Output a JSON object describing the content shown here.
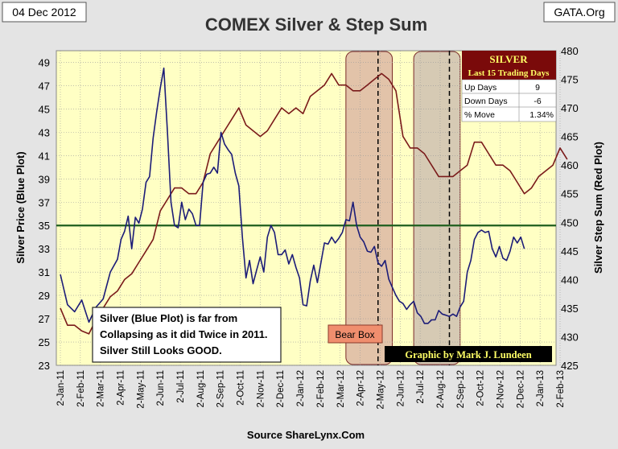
{
  "header": {
    "date": "04 Dec 2012",
    "title": "COMEX Silver & Step Sum",
    "site": "GATA.Org",
    "source": "Source ShareLynx.Com"
  },
  "chart_data": {
    "type": "line",
    "title": "COMEX Silver & Step Sum",
    "ylabel": "Silver Price (Blue Plot)",
    "y2label": "Silver Step Sum (Red Plot)",
    "ylim": [
      23,
      50
    ],
    "y2lim": [
      425,
      480
    ],
    "yticks": [
      23,
      25,
      27,
      29,
      31,
      33,
      35,
      37,
      39,
      41,
      43,
      45,
      47,
      49
    ],
    "y2ticks": [
      425,
      430,
      435,
      440,
      445,
      450,
      455,
      460,
      465,
      470,
      475,
      480
    ],
    "xticks": [
      "2-Jan-11",
      "2-Feb-11",
      "2-Mar-11",
      "2-Apr-11",
      "2-May-11",
      "2-Jun-11",
      "2-Jul-11",
      "2-Aug-11",
      "2-Sep-11",
      "2-Oct-11",
      "2-Nov-11",
      "2-Dec-11",
      "2-Jan-12",
      "2-Feb-12",
      "2-Mar-12",
      "2-Apr-12",
      "2-May-12",
      "2-Jun-12",
      "2-Jul-12",
      "2-Aug-12",
      "2-Sep-12",
      "2-Oct-12",
      "2-Nov-12",
      "2-Dec-12",
      "2-Jan-13",
      "2-Feb-13"
    ],
    "grid": true,
    "reference_line": 35,
    "series": [
      {
        "name": "Silver Price (Blue Plot)",
        "axis": "left",
        "color": "#1c1c78",
        "points": [
          [
            0,
            30.8
          ],
          [
            2,
            28.2
          ],
          [
            4,
            27.6
          ],
          [
            6,
            28.6
          ],
          [
            8,
            26.7
          ],
          [
            10,
            28.0
          ],
          [
            12,
            28.7
          ],
          [
            14,
            31.0
          ],
          [
            16,
            32.1
          ],
          [
            17,
            33.8
          ],
          [
            18,
            34.5
          ],
          [
            19,
            35.8
          ],
          [
            20,
            33.0
          ],
          [
            21,
            35.7
          ],
          [
            22,
            35.2
          ],
          [
            23,
            36.4
          ],
          [
            24,
            38.7
          ],
          [
            25,
            39.2
          ],
          [
            26,
            42.5
          ],
          [
            27,
            44.8
          ],
          [
            28,
            46.8
          ],
          [
            29,
            48.5
          ],
          [
            30,
            43.0
          ],
          [
            31,
            37.0
          ],
          [
            32,
            35.0
          ],
          [
            33,
            34.8
          ],
          [
            34,
            37.0
          ],
          [
            35,
            35.5
          ],
          [
            36,
            36.4
          ],
          [
            37,
            36.0
          ],
          [
            38,
            35.0
          ],
          [
            39,
            35.0
          ],
          [
            40,
            38.7
          ],
          [
            41,
            39.4
          ],
          [
            42,
            39.5
          ],
          [
            43,
            40.0
          ],
          [
            44,
            39.5
          ],
          [
            45,
            43.0
          ],
          [
            46,
            42.0
          ],
          [
            47,
            41.5
          ],
          [
            48,
            41.1
          ],
          [
            49,
            39.5
          ],
          [
            50,
            38.4
          ],
          [
            51,
            34.0
          ],
          [
            52,
            30.5
          ],
          [
            53,
            32.0
          ],
          [
            54,
            30.0
          ],
          [
            55,
            31.2
          ],
          [
            56,
            32.3
          ],
          [
            57,
            31.0
          ],
          [
            58,
            34.0
          ],
          [
            59,
            35.0
          ],
          [
            60,
            34.4
          ],
          [
            61,
            32.5
          ],
          [
            62,
            32.5
          ],
          [
            63,
            32.9
          ],
          [
            64,
            31.7
          ],
          [
            65,
            32.5
          ],
          [
            66,
            31.4
          ],
          [
            67,
            30.5
          ],
          [
            68,
            28.2
          ],
          [
            69,
            28.1
          ],
          [
            70,
            30.2
          ],
          [
            71,
            31.6
          ],
          [
            72,
            30.1
          ],
          [
            73,
            31.8
          ],
          [
            74,
            33.5
          ],
          [
            75,
            33.4
          ],
          [
            76,
            34.0
          ],
          [
            77,
            33.5
          ],
          [
            78,
            33.9
          ],
          [
            79,
            34.4
          ],
          [
            80,
            35.5
          ],
          [
            81,
            35.4
          ],
          [
            82,
            37.0
          ],
          [
            83,
            35.0
          ],
          [
            84,
            34.0
          ],
          [
            85,
            33.6
          ],
          [
            86,
            32.8
          ],
          [
            87,
            32.7
          ],
          [
            88,
            33.2
          ],
          [
            89,
            31.8
          ],
          [
            90,
            31.5
          ],
          [
            91,
            32.0
          ],
          [
            92,
            30.4
          ],
          [
            93,
            29.7
          ],
          [
            94,
            29.0
          ],
          [
            95,
            28.5
          ],
          [
            96,
            28.3
          ],
          [
            97,
            27.8
          ],
          [
            98,
            28.2
          ],
          [
            99,
            28.5
          ],
          [
            100,
            27.5
          ],
          [
            101,
            27.2
          ],
          [
            102,
            26.6
          ],
          [
            103,
            26.6
          ],
          [
            104,
            26.9
          ],
          [
            105,
            26.9
          ],
          [
            106,
            27.7
          ],
          [
            107,
            27.4
          ],
          [
            108,
            27.3
          ],
          [
            109,
            27.2
          ],
          [
            110,
            27.4
          ],
          [
            111,
            27.2
          ],
          [
            112,
            28.0
          ],
          [
            113,
            28.5
          ],
          [
            114,
            31.0
          ],
          [
            115,
            32.0
          ],
          [
            116,
            33.8
          ],
          [
            117,
            34.4
          ],
          [
            118,
            34.6
          ],
          [
            119,
            34.4
          ],
          [
            120,
            34.5
          ],
          [
            121,
            33.0
          ],
          [
            122,
            32.3
          ],
          [
            123,
            33.2
          ],
          [
            124,
            32.2
          ],
          [
            125,
            32.0
          ],
          [
            126,
            32.8
          ],
          [
            127,
            34.0
          ],
          [
            128,
            33.5
          ],
          [
            129,
            34.0
          ],
          [
            130,
            33.0
          ]
        ]
      },
      {
        "name": "Silver Step Sum (Red Plot)",
        "axis": "right",
        "color": "#7a1a1a",
        "points": [
          [
            0,
            435
          ],
          [
            2,
            432
          ],
          [
            4,
            432
          ],
          [
            6,
            431
          ],
          [
            8,
            430.5
          ],
          [
            10,
            433
          ],
          [
            12,
            435
          ],
          [
            14,
            437
          ],
          [
            16,
            438
          ],
          [
            18,
            440
          ],
          [
            20,
            441
          ],
          [
            22,
            443
          ],
          [
            24,
            445
          ],
          [
            26,
            447
          ],
          [
            28,
            452
          ],
          [
            30,
            454
          ],
          [
            32,
            456
          ],
          [
            34,
            456
          ],
          [
            36,
            455
          ],
          [
            38,
            455
          ],
          [
            40,
            457
          ],
          [
            42,
            462
          ],
          [
            44,
            464
          ],
          [
            46,
            466
          ],
          [
            48,
            468
          ],
          [
            50,
            470
          ],
          [
            52,
            467
          ],
          [
            54,
            466
          ],
          [
            56,
            465
          ],
          [
            58,
            466
          ],
          [
            60,
            468
          ],
          [
            62,
            470
          ],
          [
            64,
            469
          ],
          [
            66,
            470
          ],
          [
            68,
            469
          ],
          [
            70,
            472
          ],
          [
            72,
            473
          ],
          [
            74,
            474
          ],
          [
            76,
            476
          ],
          [
            78,
            474
          ],
          [
            80,
            474
          ],
          [
            82,
            473
          ],
          [
            84,
            473
          ],
          [
            86,
            474
          ],
          [
            88,
            475
          ],
          [
            90,
            476
          ],
          [
            92,
            475
          ],
          [
            94,
            473
          ],
          [
            96,
            465
          ],
          [
            98,
            463
          ],
          [
            100,
            463
          ],
          [
            102,
            462
          ],
          [
            104,
            460
          ],
          [
            106,
            458
          ],
          [
            108,
            458
          ],
          [
            110,
            458
          ],
          [
            112,
            459
          ],
          [
            114,
            460
          ],
          [
            116,
            464
          ],
          [
            118,
            464
          ],
          [
            120,
            462
          ],
          [
            122,
            460
          ],
          [
            124,
            460
          ],
          [
            126,
            459
          ],
          [
            128,
            457
          ],
          [
            130,
            455
          ],
          [
            132,
            456
          ],
          [
            134,
            458
          ],
          [
            136,
            459
          ],
          [
            138,
            460
          ],
          [
            140,
            463
          ],
          [
            142,
            461
          ]
        ]
      }
    ],
    "annotations": {
      "note_lines": [
        "Silver (Blue Plot) is far from",
        "Collapsing as it did Twice in 2011.",
        "Silver Still Looks GOOD."
      ],
      "bear_box_label": "Bear Box",
      "credit": "Graphic by Mark J. Lundeen",
      "boxes": [
        {
          "x_from": 80,
          "x_to": 93,
          "color": "#ddb8a4"
        },
        {
          "x_from": 99,
          "x_to": 112,
          "color": "#cfc1b1"
        }
      ],
      "dashed_lines": [
        89,
        109
      ]
    },
    "stats_table": {
      "title": "SILVER",
      "subtitle": "Last 15 Trading Days",
      "rows": [
        {
          "label": "Up Days",
          "value": "9"
        },
        {
          "label": "Down Days",
          "value": "-6"
        },
        {
          "label": "% Move",
          "value": "1.34%"
        }
      ]
    },
    "colors": {
      "plot_bg": "#ffffc4",
      "grid": "#9a9a9a",
      "reference": "#1e5e1e",
      "table_header": "#7a0a0a",
      "table_header_text": "#ffff66",
      "note_bg": "#ffffff",
      "bear_label_bg": "#f08e6e",
      "credit_bg": "#000000",
      "credit_text": "#ffff66"
    }
  }
}
